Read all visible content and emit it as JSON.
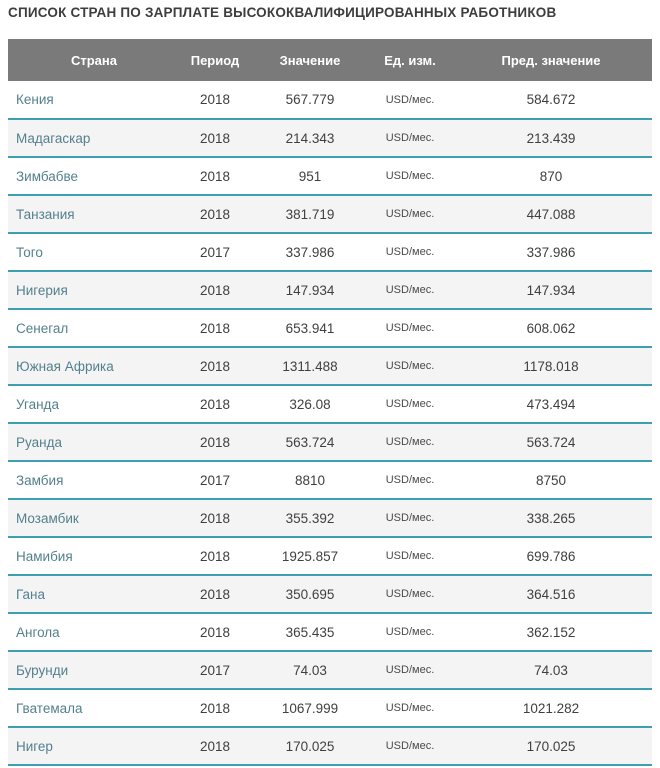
{
  "title": "СПИСОК СТРАН ПО ЗАРПЛАТЕ ВЫСОКОКВАЛИФИЦИРОВАННЫХ РАБОТНИКОВ",
  "colors": {
    "header_bg": "#7a7a7a",
    "header_text": "#ffffff",
    "row_separator": "#3f9fb0",
    "row_alt_bg": "#f4f4f4",
    "country_link": "#54808e",
    "title_text": "#3d3d3d",
    "cell_text": "#3f3f3f"
  },
  "table": {
    "headers": [
      "Страна",
      "Период",
      "Значение",
      "Ед. изм.",
      "Пред. значение"
    ],
    "rows": [
      {
        "country": "Кения",
        "period": "2018",
        "value": "567.779",
        "unit": "USD/мес.",
        "prev_value": "584.672"
      },
      {
        "country": "Мадагаскар",
        "period": "2018",
        "value": "214.343",
        "unit": "USD/мес.",
        "prev_value": "213.439"
      },
      {
        "country": "Зимбабве",
        "period": "2018",
        "value": "951",
        "unit": "USD/мес.",
        "prev_value": "870"
      },
      {
        "country": "Танзания",
        "period": "2018",
        "value": "381.719",
        "unit": "USD/мес.",
        "prev_value": "447.088"
      },
      {
        "country": "Того",
        "period": "2017",
        "value": "337.986",
        "unit": "USD/мес.",
        "prev_value": "337.986"
      },
      {
        "country": "Нигерия",
        "period": "2018",
        "value": "147.934",
        "unit": "USD/мес.",
        "prev_value": "147.934"
      },
      {
        "country": "Сенегал",
        "period": "2018",
        "value": "653.941",
        "unit": "USD/мес.",
        "prev_value": "608.062"
      },
      {
        "country": "Южная Африка",
        "period": "2018",
        "value": "1311.488",
        "unit": "USD/мес.",
        "prev_value": "1178.018"
      },
      {
        "country": "Уганда",
        "period": "2018",
        "value": "326.08",
        "unit": "USD/мес.",
        "prev_value": "473.494"
      },
      {
        "country": "Руанда",
        "period": "2018",
        "value": "563.724",
        "unit": "USD/мес.",
        "prev_value": "563.724"
      },
      {
        "country": "Замбия",
        "period": "2017",
        "value": "8810",
        "unit": "USD/мес.",
        "prev_value": "8750"
      },
      {
        "country": "Мозамбик",
        "period": "2018",
        "value": "355.392",
        "unit": "USD/мес.",
        "prev_value": "338.265"
      },
      {
        "country": "Намибия",
        "period": "2018",
        "value": "1925.857",
        "unit": "USD/мес.",
        "prev_value": "699.786"
      },
      {
        "country": "Гана",
        "period": "2018",
        "value": "350.695",
        "unit": "USD/мес.",
        "prev_value": "364.516"
      },
      {
        "country": "Ангола",
        "period": "2018",
        "value": "365.435",
        "unit": "USD/мес.",
        "prev_value": "362.152"
      },
      {
        "country": "Бурунди",
        "period": "2017",
        "value": "74.03",
        "unit": "USD/мес.",
        "prev_value": "74.03"
      },
      {
        "country": "Гватемала",
        "period": "2018",
        "value": "1067.999",
        "unit": "USD/мес.",
        "prev_value": "1021.282"
      },
      {
        "country": "Нигер",
        "period": "2018",
        "value": "170.025",
        "unit": "USD/мес.",
        "prev_value": "170.025"
      }
    ]
  }
}
